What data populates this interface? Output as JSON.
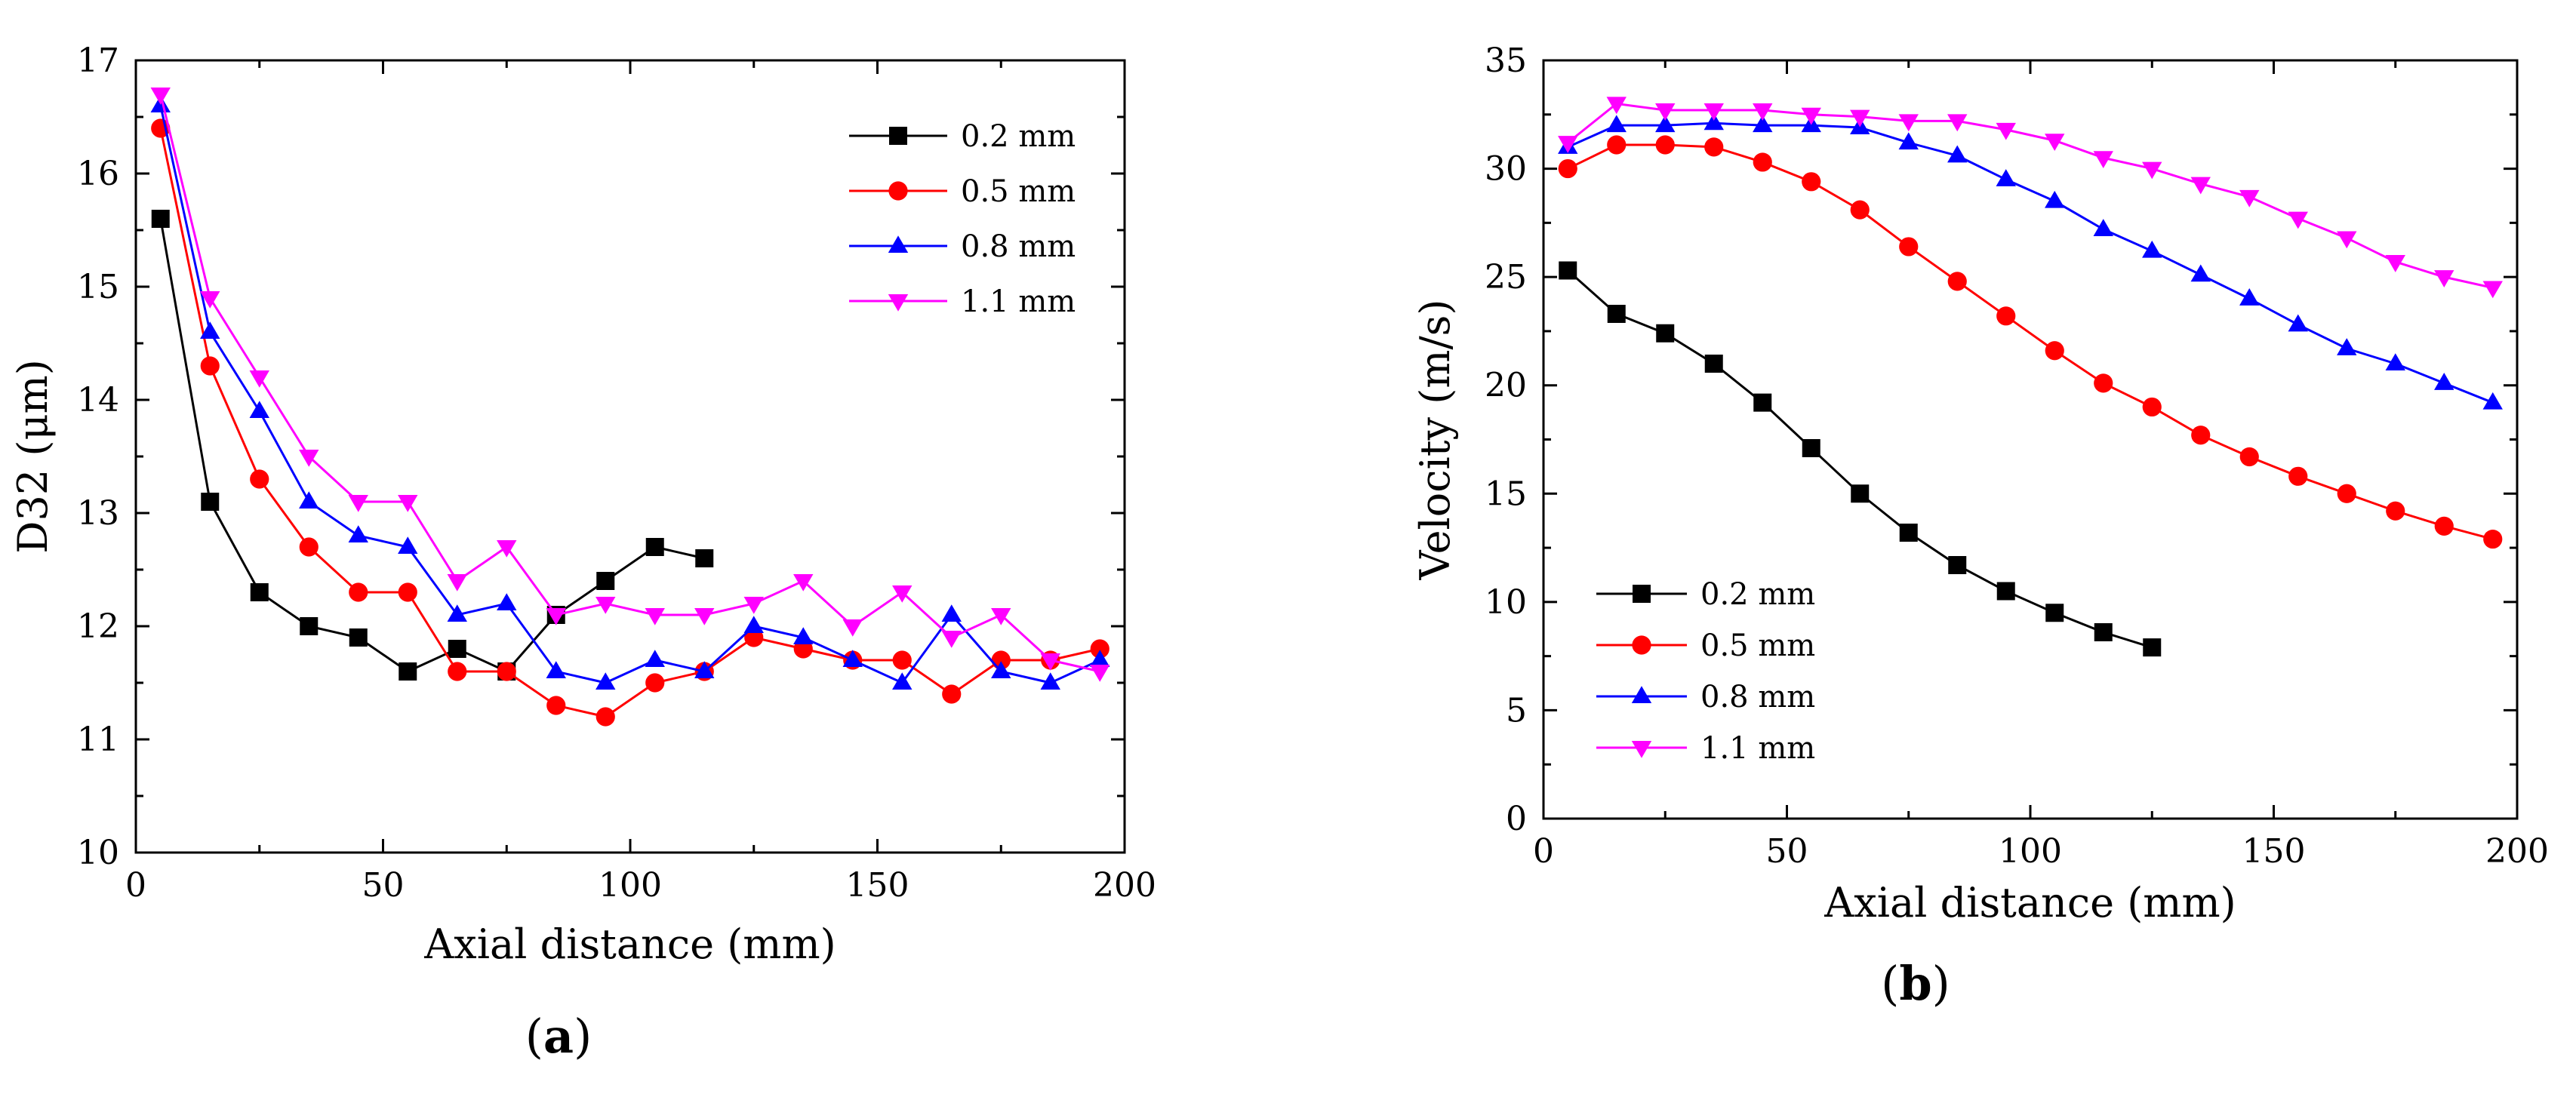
{
  "figure": {
    "caption_a": "(a)",
    "caption_b": "(b)"
  },
  "chart_data": [
    {
      "type": "line",
      "panel": "a",
      "title": "",
      "xlabel": "Axial distance (mm)",
      "ylabel": "D32 (μm)",
      "xlim": [
        0,
        200
      ],
      "ylim": [
        10,
        17
      ],
      "xticks": [
        0,
        50,
        100,
        150,
        200
      ],
      "yticks": [
        10,
        11,
        12,
        13,
        14,
        15,
        16,
        17
      ],
      "grid": false,
      "legend_position": "top-right",
      "series": [
        {
          "name": "0.2 mm",
          "color": "#000000",
          "marker": "square",
          "x": [
            5,
            15,
            25,
            35,
            45,
            55,
            65,
            75,
            85,
            95,
            105,
            115
          ],
          "values": [
            15.6,
            13.1,
            12.3,
            12.0,
            11.9,
            11.6,
            11.8,
            11.6,
            12.1,
            12.4,
            12.7,
            12.6
          ]
        },
        {
          "name": "0.5 mm",
          "color": "#ff0000",
          "marker": "circle",
          "x": [
            5,
            15,
            25,
            35,
            45,
            55,
            65,
            75,
            85,
            95,
            105,
            115,
            125,
            135,
            145,
            155,
            165,
            175,
            185,
            195
          ],
          "values": [
            16.4,
            14.3,
            13.3,
            12.7,
            12.3,
            12.3,
            11.6,
            11.6,
            11.3,
            11.2,
            11.5,
            11.6,
            11.9,
            11.8,
            11.7,
            11.7,
            11.4,
            11.7,
            11.7,
            11.8
          ]
        },
        {
          "name": "0.8 mm",
          "color": "#0000ff",
          "marker": "triangle-up",
          "x": [
            5,
            15,
            25,
            35,
            45,
            55,
            65,
            75,
            85,
            95,
            105,
            115,
            125,
            135,
            145,
            155,
            165,
            175,
            185,
            195
          ],
          "values": [
            16.6,
            14.6,
            13.9,
            13.1,
            12.8,
            12.7,
            12.1,
            12.2,
            11.6,
            11.5,
            11.7,
            11.6,
            12.0,
            11.9,
            11.7,
            11.5,
            12.1,
            11.6,
            11.5,
            11.7
          ]
        },
        {
          "name": "1.1 mm",
          "color": "#ff00ff",
          "marker": "triangle-down",
          "x": [
            5,
            15,
            25,
            35,
            45,
            55,
            65,
            75,
            85,
            95,
            105,
            115,
            125,
            135,
            145,
            155,
            165,
            175,
            185,
            195
          ],
          "values": [
            16.7,
            14.9,
            14.2,
            13.5,
            13.1,
            13.1,
            12.4,
            12.7,
            12.1,
            12.2,
            12.1,
            12.1,
            12.2,
            12.4,
            12.0,
            12.3,
            11.9,
            12.1,
            11.7,
            11.6
          ]
        }
      ]
    },
    {
      "type": "line",
      "panel": "b",
      "title": "",
      "xlabel": "Axial distance (mm)",
      "ylabel": "Velocity (m/s)",
      "xlim": [
        0,
        200
      ],
      "ylim": [
        0,
        35
      ],
      "xticks": [
        0,
        50,
        100,
        150,
        200
      ],
      "yticks": [
        0,
        5,
        10,
        15,
        20,
        25,
        30,
        35
      ],
      "grid": false,
      "legend_position": "bottom-left",
      "series": [
        {
          "name": "0.2 mm",
          "color": "#000000",
          "marker": "square",
          "x": [
            5,
            15,
            25,
            35,
            45,
            55,
            65,
            75,
            85,
            95,
            105,
            115,
            125
          ],
          "values": [
            25.3,
            23.3,
            22.4,
            21.0,
            19.2,
            17.1,
            15.0,
            13.2,
            11.7,
            10.5,
            9.5,
            8.6,
            7.9
          ]
        },
        {
          "name": "0.5 mm",
          "color": "#ff0000",
          "marker": "circle",
          "x": [
            5,
            15,
            25,
            35,
            45,
            55,
            65,
            75,
            85,
            95,
            105,
            115,
            125,
            135,
            145,
            155,
            165,
            175,
            185,
            195
          ],
          "values": [
            30.0,
            31.1,
            31.1,
            31.0,
            30.3,
            29.4,
            28.1,
            26.4,
            24.8,
            23.2,
            21.6,
            20.1,
            19.0,
            17.7,
            16.7,
            15.8,
            15.0,
            14.2,
            13.5,
            12.9
          ]
        },
        {
          "name": "0.8 mm",
          "color": "#0000ff",
          "marker": "triangle-up",
          "x": [
            5,
            15,
            25,
            35,
            45,
            55,
            65,
            75,
            85,
            95,
            105,
            115,
            125,
            135,
            145,
            155,
            165,
            175,
            185,
            195
          ],
          "values": [
            31.0,
            32.0,
            32.0,
            32.1,
            32.0,
            32.0,
            31.9,
            31.2,
            30.6,
            29.5,
            28.5,
            27.2,
            26.2,
            25.1,
            24.0,
            22.8,
            21.7,
            21.0,
            20.1,
            19.2
          ]
        },
        {
          "name": "1.1 mm",
          "color": "#ff00ff",
          "marker": "triangle-down",
          "x": [
            5,
            15,
            25,
            35,
            45,
            55,
            65,
            75,
            85,
            95,
            105,
            115,
            125,
            135,
            145,
            155,
            165,
            175,
            185,
            195
          ],
          "values": [
            31.2,
            33.0,
            32.7,
            32.7,
            32.7,
            32.5,
            32.4,
            32.2,
            32.2,
            31.8,
            31.3,
            30.5,
            30.0,
            29.3,
            28.7,
            27.7,
            26.8,
            25.7,
            25.0,
            24.5
          ]
        }
      ]
    }
  ]
}
